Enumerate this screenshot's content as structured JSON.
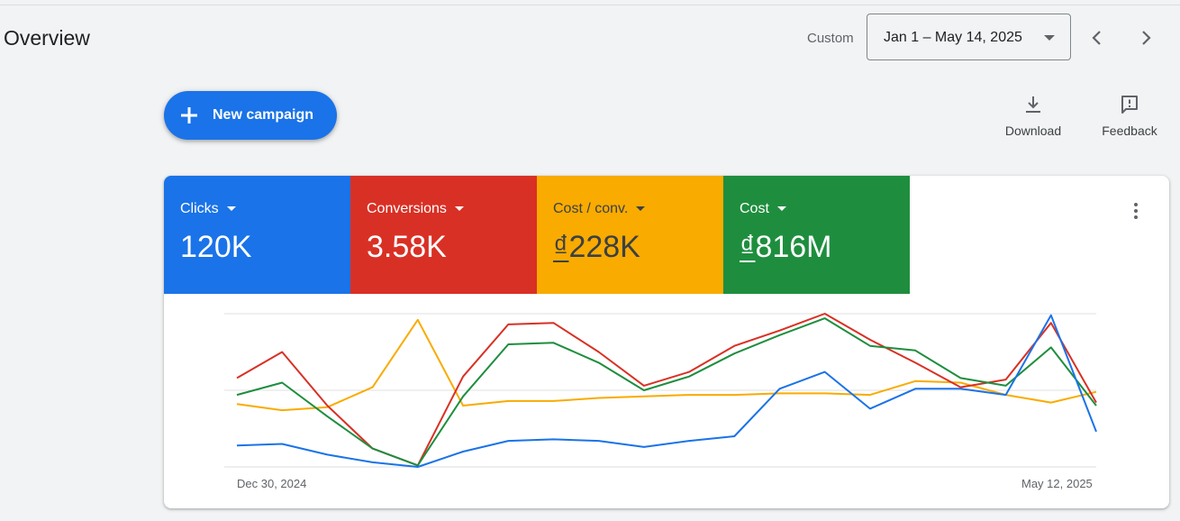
{
  "header": {
    "title": "Overview",
    "custom_label": "Custom",
    "date_range": "Jan 1 – May 14, 2025"
  },
  "toolbar": {
    "new_campaign_label": "New campaign",
    "download_label": "Download",
    "feedback_label": "Feedback"
  },
  "metrics": [
    {
      "name": "Clicks",
      "value": "120K",
      "currency": "",
      "amount": "120K",
      "color": "#1a73e8"
    },
    {
      "name": "Conversions",
      "value": "3.58K",
      "currency": "",
      "amount": "3.58K",
      "color": "#d93025"
    },
    {
      "name": "Cost / conv.",
      "value": "₫228K",
      "currency": "₫",
      "amount": "228K",
      "color": "#f9ab00"
    },
    {
      "name": "Cost",
      "value": "₫816M",
      "currency": "₫",
      "amount": "816M",
      "color": "#1e8e3e"
    }
  ],
  "chart_data": {
    "type": "line",
    "x_labels": [
      "Dec 30, 2024",
      "May 12, 2025"
    ],
    "y_normalized": true,
    "series": [
      {
        "metric": "Cost / conv.",
        "color": "#f9ab00",
        "values": [
          0.41,
          0.37,
          0.39,
          0.52,
          0.96,
          0.4,
          0.43,
          0.43,
          0.45,
          0.46,
          0.47,
          0.47,
          0.48,
          0.48,
          0.47,
          0.56,
          0.55,
          0.47,
          0.42,
          0.49
        ]
      },
      {
        "metric": "Conversions",
        "color": "#d93025",
        "values": [
          0.58,
          0.75,
          0.4,
          0.12,
          0.01,
          0.59,
          0.93,
          0.94,
          0.75,
          0.53,
          0.62,
          0.79,
          0.89,
          1.0,
          0.83,
          0.68,
          0.52,
          0.57,
          0.94,
          0.42
        ]
      },
      {
        "metric": "Cost",
        "color": "#1e8e3e",
        "values": [
          0.47,
          0.55,
          0.33,
          0.12,
          0.01,
          0.46,
          0.8,
          0.81,
          0.68,
          0.5,
          0.59,
          0.74,
          0.86,
          0.97,
          0.79,
          0.76,
          0.58,
          0.53,
          0.78,
          0.4
        ]
      },
      {
        "metric": "Clicks",
        "color": "#1a73e8",
        "values": [
          0.14,
          0.15,
          0.08,
          0.03,
          0.0,
          0.1,
          0.17,
          0.18,
          0.17,
          0.13,
          0.17,
          0.2,
          0.51,
          0.62,
          0.38,
          0.51,
          0.51,
          0.47,
          0.99,
          0.23
        ]
      }
    ]
  }
}
